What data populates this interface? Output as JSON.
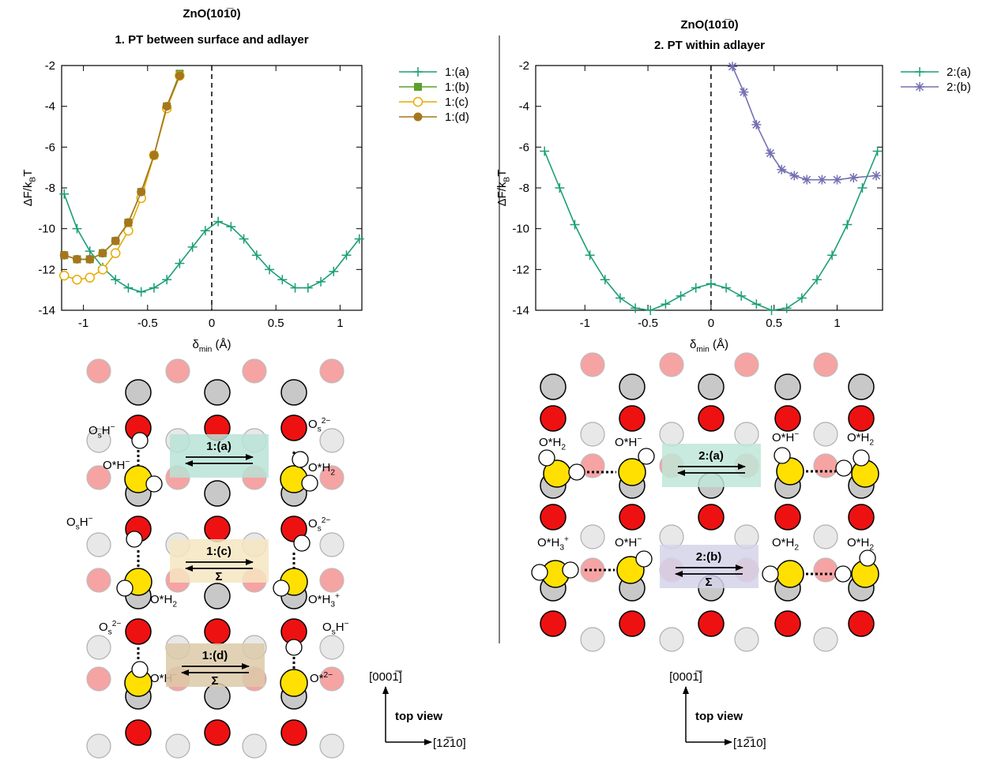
{
  "chart_data": [
    {
      "type": "line",
      "title": "ZnO(101̅0)",
      "subtitle": "1. PT between surface and adlayer",
      "xlabel": [
        "δ",
        "min",
        " (Å)"
      ],
      "ylabel": [
        "ΔF/k",
        "B",
        "T"
      ],
      "xlim": [
        -1.17,
        1.17
      ],
      "ylim": [
        -14,
        -2
      ],
      "xticks": [
        -1,
        -0.5,
        0,
        0.5,
        1
      ],
      "yticks": [
        -14,
        -12,
        -10,
        -8,
        -6,
        -4,
        -2
      ],
      "vline": 0,
      "series": [
        {
          "name": "1:(a)",
          "color": "#1b9e77",
          "marker": "plus",
          "x": [
            -1.15,
            -1.05,
            -0.95,
            -0.85,
            -0.75,
            -0.65,
            -0.55,
            -0.45,
            -0.35,
            -0.25,
            -0.15,
            -0.05,
            0.05,
            0.15,
            0.25,
            0.35,
            0.45,
            0.55,
            0.65,
            0.75,
            0.85,
            0.95,
            1.05,
            1.15
          ],
          "values": [
            -8.3,
            -10.0,
            -11.1,
            -11.9,
            -12.5,
            -12.9,
            -13.1,
            -12.9,
            -12.5,
            -11.7,
            -10.9,
            -10.1,
            -9.65,
            -9.9,
            -10.5,
            -11.3,
            -12.0,
            -12.5,
            -12.9,
            -12.9,
            -12.6,
            -12.1,
            -11.3,
            -10.5
          ]
        },
        {
          "name": "1:(b)",
          "color": "#5ba02c",
          "marker": "square",
          "x": [
            -1.15,
            -1.05,
            -0.95,
            -0.85,
            -0.75,
            -0.65,
            -0.55,
            -0.45,
            -0.35,
            -0.25
          ],
          "values": [
            -11.3,
            -11.5,
            -11.5,
            -11.2,
            -10.6,
            -9.7,
            -8.2,
            -6.4,
            -4.0,
            -2.4
          ]
        },
        {
          "name": "1:(c)",
          "color": "#e6ab02",
          "marker": "circle-open",
          "x": [
            -1.15,
            -1.05,
            -0.95,
            -0.85,
            -0.75,
            -0.65,
            -0.55,
            -0.45,
            -0.35,
            -0.25
          ],
          "values": [
            -12.3,
            -12.5,
            -12.4,
            -12.0,
            -11.2,
            -10.1,
            -8.5,
            -6.4,
            -4.1,
            -2.5
          ]
        },
        {
          "name": "1:(d)",
          "color": "#a6761d",
          "marker": "circle",
          "x": [
            -1.15,
            -1.05,
            -0.95,
            -0.85,
            -0.75,
            -0.65,
            -0.55,
            -0.45,
            -0.35,
            -0.25
          ],
          "values": [
            -11.3,
            -11.5,
            -11.5,
            -11.2,
            -10.6,
            -9.7,
            -8.2,
            -6.4,
            -4.0,
            -2.5
          ]
        }
      ]
    },
    {
      "type": "line",
      "title": "ZnO(101̅0)",
      "subtitle": "2. PT within adlayer",
      "xlabel": [
        "δ",
        "min",
        " (Å)"
      ],
      "ylabel": [
        "ΔF/k",
        "B",
        "T"
      ],
      "xlim": [
        -1.39,
        1.36
      ],
      "ylim": [
        -14,
        -2
      ],
      "xticks": [
        -1,
        -0.5,
        0,
        0.5,
        1
      ],
      "yticks": [
        -14,
        -12,
        -10,
        -8,
        -6,
        -4,
        -2
      ],
      "vline": 0,
      "series": [
        {
          "name": "2:(a)",
          "color": "#1b9e77",
          "marker": "plus",
          "x": [
            -1.32,
            -1.2,
            -1.08,
            -0.96,
            -0.84,
            -0.72,
            -0.6,
            -0.48,
            -0.36,
            -0.24,
            -0.12,
            0,
            0.12,
            0.24,
            0.36,
            0.48,
            0.6,
            0.72,
            0.84,
            0.96,
            1.08,
            1.2,
            1.32
          ],
          "values": [
            -6.2,
            -8.0,
            -9.8,
            -11.3,
            -12.5,
            -13.4,
            -13.9,
            -14.0,
            -13.7,
            -13.3,
            -12.9,
            -12.7,
            -12.9,
            -13.3,
            -13.7,
            -14.0,
            -13.9,
            -13.4,
            -12.5,
            -11.3,
            -9.8,
            -8.0,
            -6.2
          ]
        },
        {
          "name": "2:(b)",
          "color": "#7570b3",
          "marker": "asterisk",
          "x": [
            0.17,
            0.26,
            0.36,
            0.47,
            0.56,
            0.66,
            0.76,
            0.88,
            1.0,
            1.13,
            1.31
          ],
          "values": [
            -2.05,
            -3.3,
            -4.9,
            -6.3,
            -7.1,
            -7.4,
            -7.6,
            -7.6,
            -7.6,
            -7.5,
            -7.4
          ]
        }
      ]
    }
  ],
  "diagrams": [
    {
      "labels": [
        [
          "O",
          "s",
          "H",
          "−"
        ],
        [
          "O*H",
          "−"
        ],
        [
          "O",
          "s",
          "2−"
        ],
        [
          "O*H",
          "2"
        ],
        [
          "O",
          "s",
          "H",
          "−"
        ],
        [
          "O",
          "s",
          "2−"
        ],
        [
          "O*H",
          "2"
        ],
        [
          "O*H",
          "3",
          "+"
        ],
        [
          "O",
          "s",
          "2−"
        ],
        [
          "O",
          "s",
          "H",
          "−"
        ],
        [
          "O*H",
          "−"
        ],
        [
          "O*",
          "2−"
        ]
      ],
      "processes": [
        {
          "label": "1:(a)"
        },
        {
          "label": "1:(c)",
          "sign": "Σ"
        },
        {
          "label": "1:(d)",
          "sign": "Σ"
        }
      ],
      "directions": {
        "up": "[0001̅]",
        "view": "top view",
        "right": "[12̅10]"
      }
    },
    {
      "labels": [
        [
          "O*H",
          "2"
        ],
        [
          "O*H",
          "−"
        ],
        [
          "O*H",
          "−"
        ],
        [
          "O*H",
          "2"
        ],
        [
          "O*H",
          "3",
          "+"
        ],
        [
          "O*H",
          "−"
        ],
        [
          "O*H",
          "2"
        ],
        [
          "O*H",
          "2"
        ]
      ],
      "processes": [
        {
          "label": "2:(a)"
        },
        {
          "label": "2:(b)",
          "sign": "Σ"
        }
      ],
      "directions": {
        "up": "[0001̅]",
        "view": "top view",
        "right": "[12̅10]"
      }
    }
  ]
}
